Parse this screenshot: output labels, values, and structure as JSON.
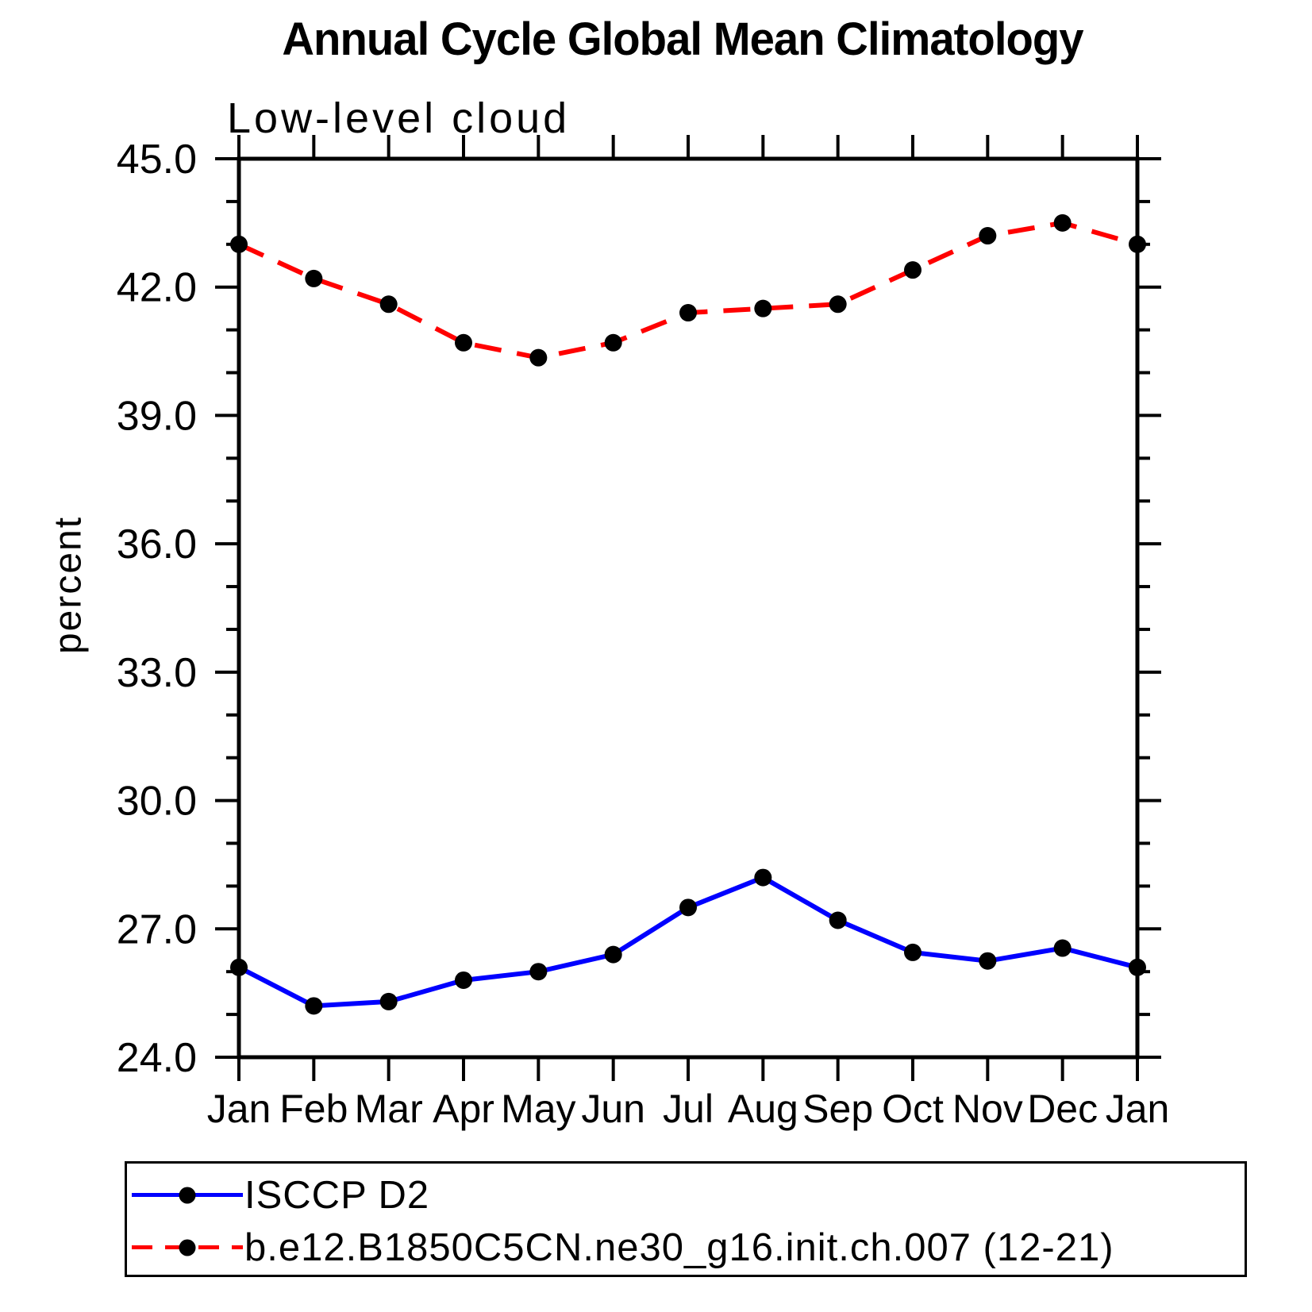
{
  "title": "Annual Cycle Global Mean Climatology",
  "subtitle": "Low-level cloud",
  "chart_data": {
    "type": "line",
    "title": "Annual Cycle Global Mean Climatology",
    "subtitle": "Low-level cloud",
    "ylabel": "percent",
    "xlabel": "",
    "categories": [
      "Jan",
      "Feb",
      "Mar",
      "Apr",
      "May",
      "Jun",
      "Jul",
      "Aug",
      "Sep",
      "Oct",
      "Nov",
      "Dec",
      "Jan"
    ],
    "ylim": [
      24.0,
      45.0
    ],
    "ytick_values": [
      45,
      42,
      39,
      36,
      33,
      30,
      27,
      24
    ],
    "ytick_labels": [
      "45.0",
      "42.0",
      "39.0",
      "36.0",
      "33.0",
      "30.0",
      "27.0",
      "24.0"
    ],
    "ytick_minor_step": 1,
    "grid": false,
    "legend_position": "bottom",
    "marker_color": "#000000",
    "axis_color": "#000000",
    "series": [
      {
        "name": "ISCCP D2",
        "color": "#0000ff",
        "style": "solid",
        "values": [
          26.1,
          25.2,
          25.3,
          25.8,
          26.0,
          26.4,
          27.5,
          28.2,
          27.2,
          26.45,
          26.25,
          26.55,
          26.1
        ]
      },
      {
        "name": "b.e12.B1850C5CN.ne30_g16.init.ch.007 (12-21)",
        "color": "#ff0000",
        "style": "dashed",
        "values": [
          43.0,
          42.2,
          41.6,
          40.7,
          40.35,
          40.7,
          41.4,
          41.5,
          41.6,
          42.4,
          43.2,
          43.5,
          43.0
        ]
      }
    ]
  }
}
